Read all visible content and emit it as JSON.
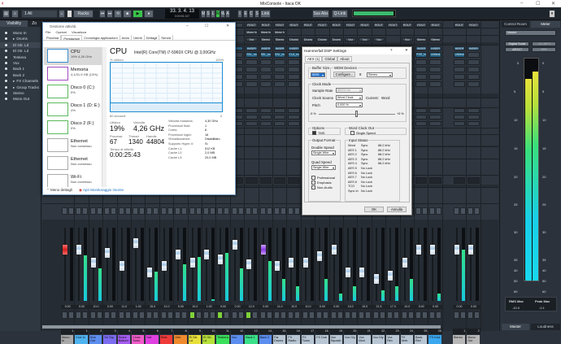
{
  "window": {
    "title": "MixConsole - Itaca OK",
    "minimize": "–",
    "maximize": "☐",
    "close": "✕"
  },
  "toolbar": {
    "input_filter": "1 All",
    "racks": "Racks",
    "transport": {
      "counter": "33. 3. 4. 13",
      "time": "0:00:56.167",
      "play_active": true
    },
    "mslrwa": [
      "M",
      "S",
      "L",
      "R",
      "W",
      "A"
    ],
    "right_buttons": [
      "I",
      "E",
      "CS",
      "S",
      "Link"
    ],
    "sus_abs": "Sus Abs",
    "qlink": "Q-Link"
  },
  "visibility": {
    "tab": "Visibility",
    "tab2": "Zo",
    "items": [
      {
        "label": "Mono In",
        "folder": false
      },
      {
        "label": "Drums",
        "folder": true
      },
      {
        "label": "El Gtr. Ld",
        "folder": false,
        "selected": true
      },
      {
        "label": "El Gtr. Ld",
        "folder": false
      },
      {
        "label": "Testiera",
        "folder": false
      },
      {
        "label": "Vox",
        "folder": false
      },
      {
        "label": "Back 1",
        "folder": false
      },
      {
        "label": "Back 2",
        "folder": false
      },
      {
        "label": "FX Channels",
        "folder": true
      },
      {
        "label": "Group Tracks",
        "folder": true
      },
      {
        "label": "Stereo",
        "folder": false
      },
      {
        "label": "Mono Out",
        "folder": false
      }
    ]
  },
  "mixer": {
    "rout_label": "ROUT",
    "insert_label": "INSER",
    "routing": [
      "Mono In",
      "Mono In",
      "Mono In"
    ],
    "outputs": [
      "Vox",
      "Stereo",
      "Stereo",
      "Drums",
      "Drums",
      "Drums",
      "Drums",
      "Vox",
      "Vox",
      "Vox",
      "",
      "Vox",
      "Stereo",
      "Stereo"
    ],
    "inserts": [
      "SSL_mo",
      "SSL_mo",
      "SSL_mo",
      "CLA_mo",
      "",
      "",
      "",
      "",
      "",
      "",
      "",
      "",
      "PSR_Ne",
      "UrMeal",
      "UrMeal",
      "",
      "SSL_mo"
    ],
    "channels": [
      {
        "name": "Mono In",
        "num": "1",
        "color": "#a8a8a8",
        "value": "0.00",
        "fader": 0.75,
        "meter": 0.0,
        "cap": "red"
      },
      {
        "name": "Kick In",
        "num": "1",
        "color": "#4fb3f0",
        "value": "0.00",
        "fader": 0.75,
        "meter": 0.62
      },
      {
        "name": "Kick Out",
        "num": "2",
        "color": "#5c8ef0",
        "value": "10.0",
        "fader": 0.55,
        "meter": 0.45
      },
      {
        "name": "Sn Top",
        "num": "3",
        "color": "#7b6cf0",
        "value": "0.00",
        "fader": 0.7,
        "meter": 0.0
      },
      {
        "name": "Snare Bottom",
        "num": "4",
        "color": "#a35cf0",
        "value": "11.0",
        "fader": 0.5,
        "meter": 0.0
      },
      {
        "name": "Close Toms",
        "num": "5",
        "color": "#f05cc8",
        "value": "1.00",
        "fader": 0.85,
        "meter": 0.0
      },
      {
        "name": "Hat",
        "num": "6",
        "color": "#e040e0",
        "value": "15.0",
        "fader": 0.4,
        "meter": 0.4
      },
      {
        "name": "Ride",
        "num": "7",
        "color": "#f03a3a",
        "value": "12.0",
        "fader": 0.5,
        "meter": 0.0
      },
      {
        "name": "Oeh",
        "num": "8",
        "color": "#f08a2e",
        "value": "5.00",
        "fader": 0.68,
        "meter": 0.5
      },
      {
        "name": "El Gtr. Ld",
        "num": "9",
        "color": "#e8e03a",
        "value": "10.0",
        "fader": 0.55,
        "meter": 0.6
      },
      {
        "name": "El Gtr. Ld",
        "num": "10",
        "color": "#b8e03a",
        "value": "1.00",
        "fader": 0.68,
        "meter": 0.02
      },
      {
        "name": "Testiera",
        "num": "11",
        "color": "#3ae05c",
        "value": "5.00",
        "fader": 0.6,
        "meter": 0.66
      },
      {
        "name": "Vox",
        "num": "12",
        "color": "#5c8ef0",
        "value": "2.00",
        "fader": 0.82,
        "meter": 0.45
      },
      {
        "name": "Back 1",
        "num": "13",
        "color": "#3ae08a",
        "value": "12.0",
        "fader": 0.52,
        "meter": 0.0
      },
      {
        "name": "Back 2",
        "num": "14",
        "color": "#5c8ef0",
        "value": "0.00",
        "fader": 0.75,
        "meter": 0.55,
        "cap": "purple"
      },
      {
        "name": "Far Drums",
        "num": "15",
        "color": "#b8c6d4",
        "value": "11.0",
        "fader": 0.5,
        "meter": 0.3
      },
      {
        "name": "FX Radio",
        "num": "16",
        "color": "#b8c6d4",
        "value": "10.0",
        "fader": 0.55,
        "meter": 0.2
      },
      {
        "name": "FX Toms",
        "num": "17",
        "color": "#b8c6d4",
        "value": "10.0",
        "fader": 0.55,
        "meter": 0.0
      },
      {
        "name": "FX Dub",
        "num": "18",
        "color": "#b8c6d4",
        "value": "5.00",
        "fader": 0.65,
        "meter": 0.3
      },
      {
        "name": "Vox Squash",
        "num": "19",
        "color": "#b8c6d4",
        "value": "0.00",
        "fader": 0.75,
        "meter": 0.1
      },
      {
        "name": "Vox Dly",
        "num": "20",
        "color": "#b8c6d4",
        "value": "15.0",
        "fader": 0.4,
        "meter": 0.2
      },
      {
        "name": "Vox Mod",
        "num": "21",
        "color": "#b8c6d4",
        "value": "15.0",
        "fader": 0.4,
        "meter": 0.0
      },
      {
        "name": "Vox Dly",
        "num": "22",
        "color": "#b8c6d4",
        "value": "21.5",
        "fader": 0.3,
        "meter": 0.15
      },
      {
        "name": "Vox Rev",
        "num": "23",
        "color": "#b8c6d4",
        "value": "17.0",
        "fader": 0.35,
        "meter": 0.2
      },
      {
        "name": "FX Verb",
        "num": "24",
        "color": "#b8c6d4",
        "value": "10.0",
        "fader": 0.55,
        "meter": 0.3
      },
      {
        "name": "Back Rev",
        "num": "25",
        "color": "#b8c6d4",
        "value": "0.00",
        "fader": 0.75,
        "meter": 0.0
      },
      {
        "name": "FX Kick",
        "num": "26",
        "color": "#3aa8f0",
        "value": "0.00",
        "fader": 0.75,
        "meter": 0.1
      },
      {
        "name": "Stereo",
        "num": "1",
        "color": "#b8b8b8",
        "value": "0.00",
        "fader": 0.75,
        "meter": 0.7
      },
      {
        "name": "Mono Out",
        "num": "2",
        "color": "#b8b8b8",
        "value": "0.00",
        "fader": 0.75,
        "meter": 0.0
      }
    ]
  },
  "taskmgr": {
    "title": "Gestione attività",
    "menu": [
      "File",
      "Opzioni",
      "Visualizza"
    ],
    "tabs": [
      "Processi",
      "Prestazioni",
      "Cronologia applicazioni",
      "Avvio",
      "Utenti",
      "Dettagli",
      "Servizi"
    ],
    "active_tab": "Prestazioni",
    "side": [
      {
        "name": "CPU",
        "sub": "19% 4,26 GHz",
        "color": "#3b8fd0"
      },
      {
        "name": "Memoria",
        "sub": "4,1/31,9 GB (13%)",
        "color": "#a04bc0"
      },
      {
        "name": "Disco 0 (C:)",
        "sub": "0%",
        "color": "#5cb85c"
      },
      {
        "name": "Disco 1 (D: E:)",
        "sub": "4%",
        "color": "#5cb85c"
      },
      {
        "name": "Disco 2 (F:)",
        "sub": "0%",
        "color": "#5cb85c"
      },
      {
        "name": "Ethernet",
        "sub": "Non connesso",
        "color": "#aaa"
      },
      {
        "name": "Ethernet",
        "sub": "Non connesso",
        "color": "#aaa"
      },
      {
        "name": "Wi-Fi",
        "sub": "Non connesso",
        "color": "#aaa"
      }
    ],
    "heading": "CPU",
    "model": "Intel(R) Core(TM) i7-5960X CPU @ 3,00GHz",
    "graph_label": "% utilizzo",
    "graph_max": "100%",
    "graph_time": "60 secondi",
    "graph_min": "0",
    "usage_pct": 19,
    "utilizzo_label": "Utilizzo",
    "utilizzo": "19%",
    "velocita_label": "Velocità",
    "velocita": "4,26 GHz",
    "processi_label": "Processi",
    "processi": "67",
    "thread_label": "Thread",
    "thread": "1340",
    "handle_label": "Handle",
    "handle": "44804",
    "uptime_label": "Tempo di attività",
    "uptime": "0:00:25:43",
    "specs": [
      [
        "Velocità massima:",
        "4,30 GHz"
      ],
      [
        "Processori fisici:",
        "1"
      ],
      [
        "Cores:",
        "8"
      ],
      [
        "Processori logici:",
        "16"
      ],
      [
        "Virtualizzazione:",
        "Disabilitato"
      ],
      [
        "Supporto Hyper-V:",
        "Sì"
      ],
      [
        "Cache L1:",
        "512 KB"
      ],
      [
        "Cache L2:",
        "2,0 MB"
      ],
      [
        "Cache L3:",
        "20,0 MB"
      ]
    ],
    "less_details": "Meno dettagli",
    "open_monitor": "Apri Monitoraggio risorse"
  },
  "dsp": {
    "title": "Hammerfall DSP Settings",
    "help": "?",
    "close": "✕",
    "tabs": [
      "AES (1)",
      "Global",
      "About"
    ],
    "buffer_size_label": "Buffer Size",
    "buffer_size": "8096",
    "wdm_label": "WDM Devices",
    "configure": "Configure...",
    "wdm_count": "8",
    "wdm_mode": "Stereo",
    "clock_mode_label": "Clock Mode",
    "sample_rate_label": "Sample Rate",
    "sample_rate": "88200 Hz",
    "clock_source_label": "Clock Source",
    "clock_source": "Word Clock",
    "current_label": "Current:",
    "current": "Word",
    "pitch_label": "Pitch",
    "pitch": "0.000 %",
    "pitch_min": "-5 %",
    "pitch_max": "+5 %",
    "options_label": "Options",
    "tms": "TMS",
    "tms_checked": true,
    "wordclock_out_label": "Word Clock Out",
    "single_speed": "Single Speed",
    "single_speed_checked": false,
    "output_format_label": "Output Format",
    "double_speed_label": "Double Speed",
    "double_speed": "Single Wire",
    "quad_speed_label": "Quad Speed",
    "quad_speed": "Single Wire",
    "professional": "Professional",
    "emphasis": "Emphasis",
    "non_audio": "Non-Audio",
    "input_status_label": "Input Status",
    "input_status": [
      [
        "Word",
        "Sync",
        "88.2 kHz"
      ],
      [
        "AES 1",
        "Sync",
        "88.2 kHz"
      ],
      [
        "AES 2",
        "Sync",
        "88.2 kHz"
      ],
      [
        "AES 3",
        "Sync",
        "88.2 kHz"
      ],
      [
        "AES 4",
        "Sync",
        "88.2 kHz"
      ],
      [
        "AES 5",
        "No Lock",
        ""
      ],
      [
        "AES 6",
        "No Lock",
        ""
      ],
      [
        "AES 7",
        "No Lock",
        ""
      ],
      [
        "AES 8",
        "No Lock",
        ""
      ],
      [
        "TCO",
        "No Lock",
        ""
      ],
      [
        "Sync In",
        "No Lock",
        ""
      ]
    ],
    "ok": "OK",
    "cancel": "Annulla"
  },
  "right": {
    "tab_control_room": "Control Room",
    "tab_meter": "Meter",
    "source": "Master",
    "digital_scale": "Digital Scale",
    "dbfs": "-18 dBFS",
    "aes17": "AES17",
    "plus": "+++",
    "scale": [
      "0",
      "5",
      "10",
      "15",
      "20",
      "25",
      "30",
      "35",
      "40",
      "50",
      "60"
    ],
    "meter_left_db": -5.5,
    "meter_right_db": -3.5,
    "rms_max_label": "RMS Max",
    "rms_max": "-10.0",
    "peak_max_label": "Peak Max",
    "peak_max": "-0.1",
    "tab_master": "Master",
    "tab_loudness": "Loudness",
    "meter_colors": [
      "#e8e23a",
      "#3ae07a",
      "#18cfe8"
    ]
  }
}
